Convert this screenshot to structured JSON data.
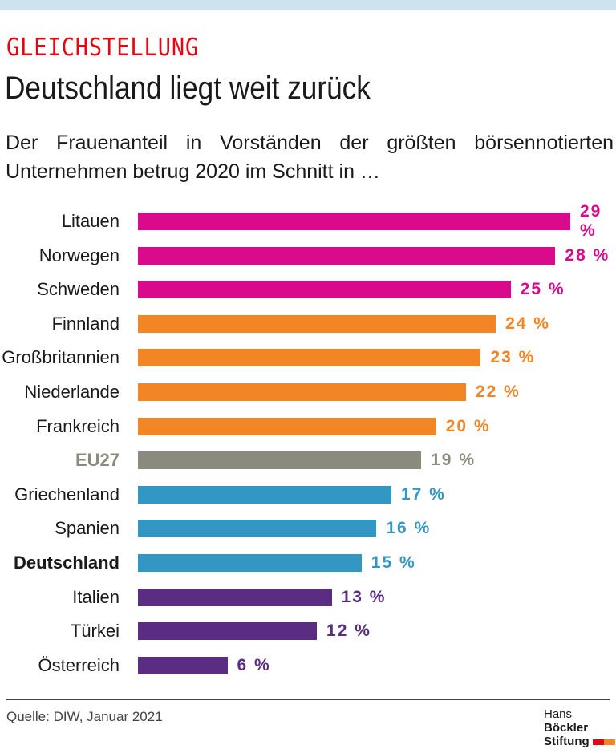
{
  "header": {
    "kicker": "GLEICHSTELLUNG",
    "title": "Deutschland liegt weit zurück",
    "subtitle": "Der Frauenanteil in Vorständen der größten börsen­notierten Unternehmen betrug 2020 im Schnitt in …"
  },
  "chart_data": {
    "type": "bar",
    "orientation": "horizontal",
    "unit": "%",
    "categories": [
      "Litauen",
      "Norwegen",
      "Schweden",
      "Finnland",
      "Großbritannien",
      "Niederlande",
      "Frankreich",
      "EU27",
      "Griechenland",
      "Spanien",
      "Deutschland",
      "Italien",
      "Türkei",
      "Österreich"
    ],
    "values": [
      29,
      28,
      25,
      24,
      23,
      22,
      20,
      19,
      17,
      16,
      15,
      13,
      12,
      6
    ],
    "value_labels": [
      "29 %",
      "28 %",
      "25 %",
      "24 %",
      "23 %",
      "22 %",
      "20 %",
      "19 %",
      "17 %",
      "16 %",
      "15 %",
      "13 %",
      "12 %",
      "6 %"
    ],
    "colors": [
      "#d90b8c",
      "#d90b8c",
      "#d90b8c",
      "#f28524",
      "#f28524",
      "#f28524",
      "#f28524",
      "#8a8a7e",
      "#3397c4",
      "#3397c4",
      "#3397c4",
      "#5b2d82",
      "#5b2d82",
      "#5b2d82"
    ],
    "highlight": {
      "EU27": "gray-bold",
      "Deutschland": "bold"
    },
    "xlim": [
      0,
      29
    ]
  },
  "footer": {
    "source": "Quelle: DIW, Januar 2021",
    "logo_line1_a": "Hans ",
    "logo_line1_b": "Böckler",
    "logo_line2": "Stiftung",
    "logo_colors": [
      "#e30613",
      "#f28524"
    ]
  }
}
